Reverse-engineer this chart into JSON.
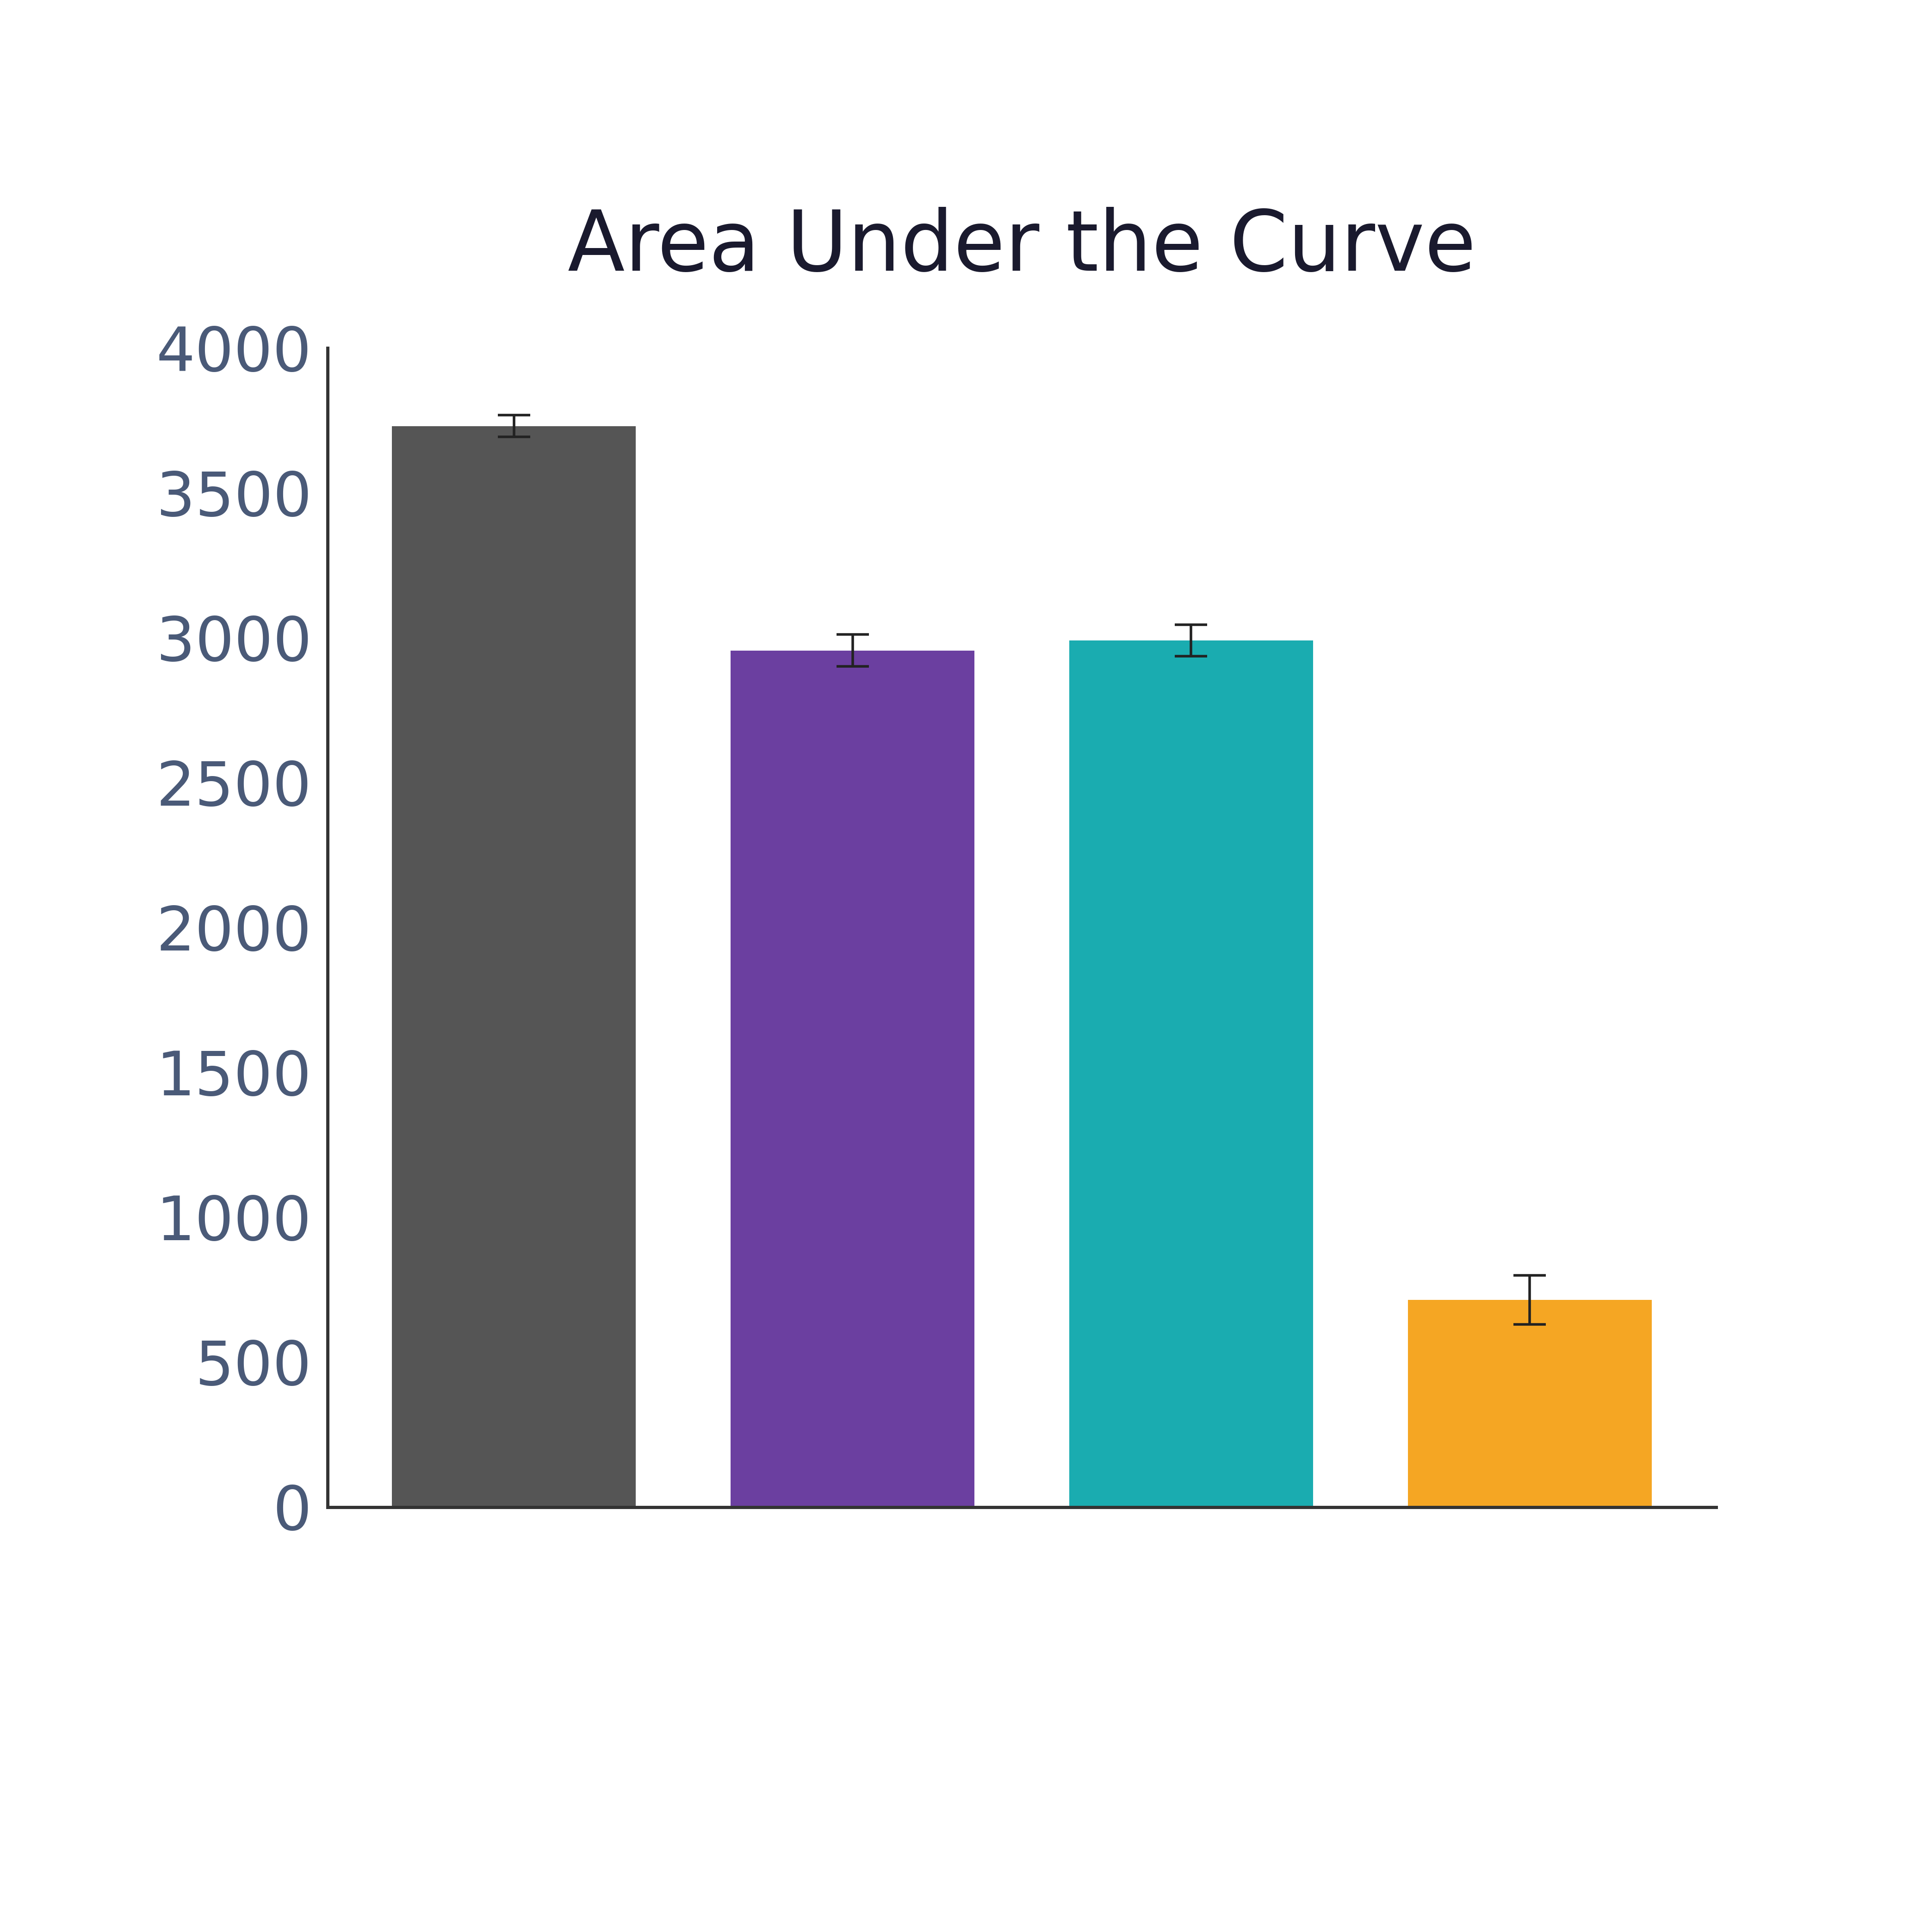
{
  "title": "Area Under the Curve",
  "title_fontsize": 130,
  "title_color": "#1a1a2e",
  "bar_values": [
    3730,
    2955,
    2990,
    715
  ],
  "bar_errors": [
    38,
    55,
    55,
    85
  ],
  "bar_colors": [
    "#555555",
    "#6b3fa0",
    "#1aacb0",
    "#f5a623"
  ],
  "bar_positions": [
    0,
    1,
    2,
    3
  ],
  "bar_width": 0.72,
  "ylim": [
    0,
    4000
  ],
  "yticks": [
    0,
    500,
    1000,
    1500,
    2000,
    2500,
    3000,
    3500,
    4000
  ],
  "tick_color": "#4a5a78",
  "tick_fontsize": 95,
  "axis_color": "#333333",
  "background_color": "#ffffff",
  "error_bar_color": "#222222",
  "error_bar_linewidth": 4,
  "error_bar_capsize": 25,
  "error_bar_capthick": 4,
  "spine_linewidth": 5
}
